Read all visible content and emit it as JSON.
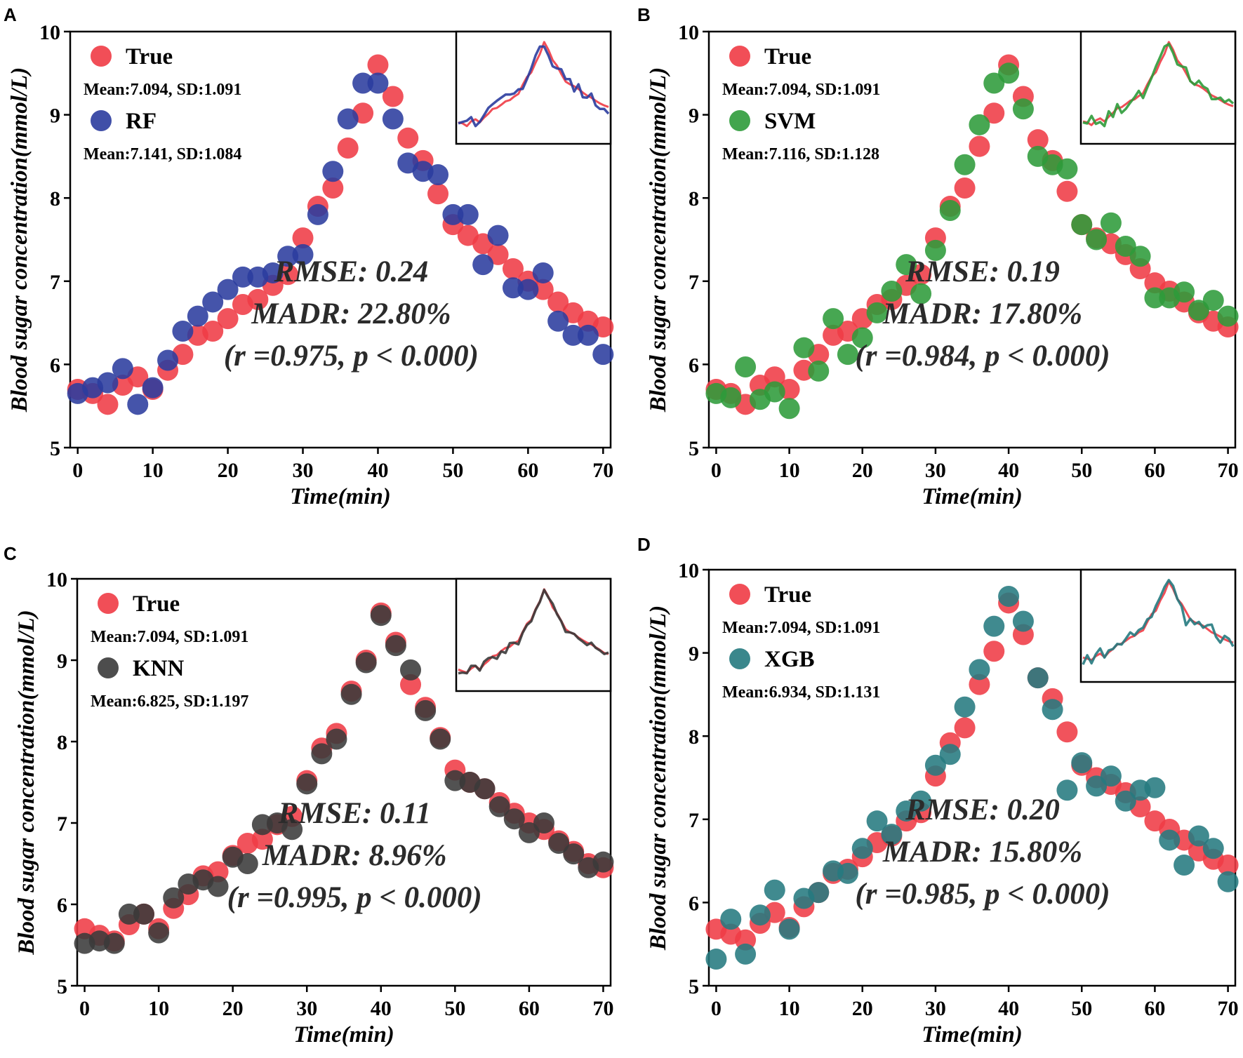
{
  "colors": {
    "true": "#ef3b45",
    "RF": "#2b3c9e",
    "SVM": "#2e9b3a",
    "KNN": "#3a3a3a",
    "XGB": "#257a80"
  },
  "chart_data": [
    {
      "type": "scatter",
      "panel": "A",
      "xlabel": "Time(min)",
      "ylabel": "Blood sugar concentration(mmol/L)",
      "xlim": [
        -1,
        71
      ],
      "ylim": [
        5,
        10
      ],
      "xticks": [
        0,
        10,
        20,
        30,
        40,
        50,
        60,
        70
      ],
      "yticks": [
        5,
        6,
        7,
        8,
        9,
        10
      ],
      "legend": [
        {
          "name": "True",
          "color_key": "true",
          "stats": "Mean:7.094, SD:1.091"
        },
        {
          "name": "RF",
          "color_key": "RF",
          "stats": "Mean:7.141, SD:1.084"
        }
      ],
      "metrics": {
        "rmse": "RMSE: 0.24",
        "madr": "MADR: 22.80%",
        "corr": "(r =0.975, p < 0.000)"
      },
      "x": [
        0,
        2,
        4,
        6,
        8,
        10,
        12,
        14,
        16,
        18,
        20,
        22,
        24,
        26,
        28,
        30,
        32,
        34,
        36,
        38,
        40,
        42,
        44,
        46,
        48,
        50,
        52,
        54,
        56,
        58,
        60,
        62,
        64,
        66,
        68,
        70
      ],
      "series": [
        {
          "name": "True",
          "color_key": "true",
          "values": [
            5.7,
            5.65,
            5.52,
            5.75,
            5.85,
            5.7,
            5.93,
            6.12,
            6.35,
            6.4,
            6.55,
            6.72,
            6.78,
            6.95,
            7.08,
            7.52,
            7.9,
            8.12,
            8.6,
            9.02,
            9.6,
            9.22,
            8.72,
            8.45,
            8.05,
            7.68,
            7.55,
            7.45,
            7.32,
            7.15,
            7.0,
            6.9,
            6.75,
            6.62,
            6.52,
            6.45
          ]
        },
        {
          "name": "RF",
          "color_key": "RF",
          "values": [
            5.65,
            5.72,
            5.78,
            5.95,
            5.52,
            5.72,
            6.05,
            6.4,
            6.58,
            6.75,
            6.9,
            7.05,
            7.05,
            7.1,
            7.3,
            7.32,
            7.8,
            8.32,
            8.95,
            9.38,
            9.38,
            8.95,
            8.42,
            8.32,
            8.28,
            7.8,
            7.8,
            7.2,
            7.55,
            6.92,
            6.9,
            7.1,
            6.52,
            6.35,
            6.35,
            6.12
          ]
        }
      ],
      "inset": {
        "series": [
          "True",
          "RF"
        ]
      }
    },
    {
      "type": "scatter",
      "panel": "B",
      "xlabel": "Time(min)",
      "ylabel": "Blood sugar concentration(mmol/L)",
      "xlim": [
        -1,
        71
      ],
      "ylim": [
        5,
        10
      ],
      "xticks": [
        0,
        10,
        20,
        30,
        40,
        50,
        60,
        70
      ],
      "yticks": [
        5,
        6,
        7,
        8,
        9,
        10
      ],
      "legend": [
        {
          "name": "True",
          "color_key": "true",
          "stats": "Mean:7.094, SD:1.091"
        },
        {
          "name": "SVM",
          "color_key": "SVM",
          "stats": "Mean:7.116, SD:1.128"
        }
      ],
      "metrics": {
        "rmse": "RMSE: 0.19",
        "madr": "MADR: 17.80%",
        "corr": "(r =0.984, p < 0.000)"
      },
      "x": [
        0,
        2,
        4,
        6,
        8,
        10,
        12,
        14,
        16,
        18,
        20,
        22,
        24,
        26,
        28,
        30,
        32,
        34,
        36,
        38,
        40,
        42,
        44,
        46,
        48,
        50,
        52,
        54,
        56,
        58,
        60,
        62,
        64,
        66,
        68,
        70
      ],
      "series": [
        {
          "name": "True",
          "color_key": "true",
          "values": [
            5.7,
            5.65,
            5.52,
            5.75,
            5.85,
            5.7,
            5.93,
            6.12,
            6.35,
            6.4,
            6.55,
            6.72,
            6.78,
            6.95,
            7.08,
            7.52,
            7.9,
            8.12,
            8.62,
            9.02,
            9.6,
            9.22,
            8.7,
            8.45,
            8.08,
            7.68,
            7.52,
            7.45,
            7.32,
            7.15,
            6.98,
            6.88,
            6.75,
            6.62,
            6.52,
            6.45
          ]
        },
        {
          "name": "SVM",
          "color_key": "SVM",
          "values": [
            5.65,
            5.6,
            5.97,
            5.58,
            5.67,
            5.47,
            6.2,
            5.92,
            6.55,
            6.12,
            6.32,
            6.62,
            6.88,
            7.2,
            6.85,
            7.37,
            7.85,
            8.4,
            8.88,
            9.38,
            9.5,
            9.07,
            8.5,
            8.4,
            8.35,
            7.68,
            7.5,
            7.7,
            7.42,
            7.3,
            6.8,
            6.8,
            6.87,
            6.65,
            6.77,
            6.58
          ]
        }
      ],
      "inset": {
        "series": [
          "True",
          "SVM"
        ]
      }
    },
    {
      "type": "scatter",
      "panel": "C",
      "xlabel": "Time(min)",
      "ylabel": "Blood sugar concentration(mmol/L)",
      "xlim": [
        -1,
        71
      ],
      "ylim": [
        5,
        10
      ],
      "xticks": [
        0,
        10,
        20,
        30,
        40,
        50,
        60,
        70
      ],
      "yticks": [
        5,
        6,
        7,
        8,
        9,
        10
      ],
      "legend": [
        {
          "name": "True",
          "color_key": "true",
          "stats": "Mean:7.094, SD:1.091"
        },
        {
          "name": "KNN",
          "color_key": "KNN",
          "stats": "Mean:6.825, SD:1.197"
        }
      ],
      "metrics": {
        "rmse": "RMSE: 0.11",
        "madr": "MADR: 8.96%",
        "corr": "(r =0.995, p < 0.000)"
      },
      "x": [
        0,
        2,
        4,
        6,
        8,
        10,
        12,
        14,
        16,
        18,
        20,
        22,
        24,
        26,
        28,
        30,
        32,
        34,
        36,
        38,
        40,
        42,
        44,
        46,
        48,
        50,
        52,
        54,
        56,
        58,
        60,
        62,
        64,
        66,
        68,
        70
      ],
      "series": [
        {
          "name": "True",
          "color_key": "true",
          "values": [
            5.7,
            5.62,
            5.55,
            5.75,
            5.88,
            5.7,
            5.95,
            6.12,
            6.35,
            6.4,
            6.6,
            6.75,
            6.8,
            6.98,
            7.08,
            7.52,
            7.92,
            8.1,
            8.62,
            9.0,
            9.58,
            9.22,
            8.7,
            8.42,
            8.05,
            7.65,
            7.5,
            7.42,
            7.25,
            7.12,
            7.0,
            6.92,
            6.78,
            6.65,
            6.5,
            6.45
          ]
        },
        {
          "name": "KNN",
          "color_key": "KNN",
          "values": [
            5.52,
            5.55,
            5.52,
            5.88,
            5.88,
            5.65,
            6.08,
            6.25,
            6.3,
            6.22,
            6.58,
            6.5,
            6.98,
            7.0,
            6.92,
            7.48,
            7.85,
            8.03,
            8.58,
            8.97,
            9.55,
            9.18,
            8.88,
            8.38,
            8.03,
            7.52,
            7.5,
            7.42,
            7.2,
            7.05,
            6.88,
            7.0,
            6.75,
            6.62,
            6.45,
            6.52
          ]
        }
      ],
      "inset": {
        "series": [
          "True",
          "KNN"
        ]
      }
    },
    {
      "type": "scatter",
      "panel": "D",
      "xlabel": "Time(min)",
      "ylabel": "Blood sugar concentration(mmol/L)",
      "xlim": [
        -1,
        71
      ],
      "ylim": [
        5,
        10
      ],
      "xticks": [
        0,
        10,
        20,
        30,
        40,
        50,
        60,
        70
      ],
      "yticks": [
        5,
        6,
        7,
        8,
        9,
        10
      ],
      "legend": [
        {
          "name": "True",
          "color_key": "true",
          "stats": "Mean:7.094, SD:1.091"
        },
        {
          "name": "XGB",
          "color_key": "XGB",
          "stats": "Mean:6.934, SD:1.131"
        }
      ],
      "metrics": {
        "rmse": "RMSE: 0.20",
        "madr": "MADR: 15.80%",
        "corr": "(r =0.985, p < 0.000)"
      },
      "x": [
        0,
        2,
        4,
        6,
        8,
        10,
        12,
        14,
        16,
        18,
        20,
        22,
        24,
        26,
        28,
        30,
        32,
        34,
        36,
        38,
        40,
        42,
        44,
        46,
        48,
        50,
        52,
        54,
        56,
        58,
        60,
        62,
        64,
        66,
        68,
        70
      ],
      "series": [
        {
          "name": "True",
          "color_key": "true",
          "values": [
            5.68,
            5.62,
            5.55,
            5.75,
            5.88,
            5.7,
            5.95,
            6.12,
            6.35,
            6.4,
            6.55,
            6.72,
            6.8,
            6.98,
            7.08,
            7.52,
            7.92,
            8.1,
            8.62,
            9.02,
            9.6,
            9.22,
            8.7,
            8.45,
            8.05,
            7.65,
            7.5,
            7.42,
            7.32,
            7.15,
            6.98,
            6.88,
            6.75,
            6.62,
            6.52,
            6.45
          ]
        },
        {
          "name": "XGB",
          "color_key": "XGB",
          "values": [
            5.32,
            5.8,
            5.38,
            5.85,
            6.15,
            5.68,
            6.05,
            6.12,
            6.38,
            6.35,
            6.65,
            6.98,
            6.82,
            7.1,
            7.22,
            7.65,
            7.78,
            8.35,
            8.8,
            9.32,
            9.68,
            9.38,
            8.7,
            8.32,
            7.35,
            7.68,
            7.4,
            7.52,
            7.22,
            7.35,
            7.38,
            6.75,
            6.45,
            6.8,
            6.65,
            6.25
          ]
        }
      ],
      "inset": {
        "series": [
          "True",
          "XGB"
        ]
      }
    }
  ]
}
